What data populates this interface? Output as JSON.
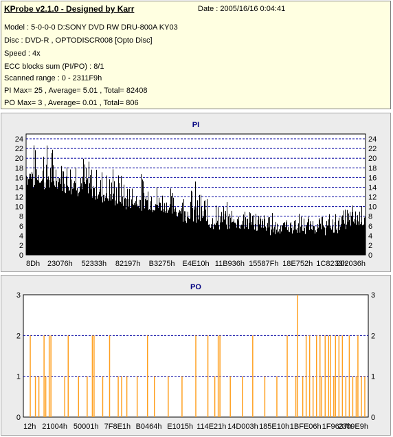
{
  "info": {
    "title": "KProbe v2.1.0 - Designed by Karr",
    "date": "Date : 2005/16/16 0:04:41",
    "lines": [
      "Model : 5-0-0-0 D:SONY    DVD RW DRU-800A  KY03",
      "Disc : DVD-R , OPTODISCR008 [Opto Disc]",
      "Speed : 4x",
      "ECC blocks sum (PI/PO) : 8/1",
      "Scanned range : 0 - 2311F9h",
      "PI Max= 25 , Average= 5.01 , Total= 82408",
      "PO Max= 3 , Average= 0.01 , Total= 806"
    ]
  },
  "colors": {
    "pi_bar": "#000000",
    "po_bar": "#ffa020",
    "chart_title": "#000080",
    "grid": "#0000a0",
    "panel_bg": "#ececec"
  },
  "chart_data": [
    {
      "type": "bar",
      "title": "PI",
      "ylim": [
        0,
        25
      ],
      "y_ticks": [
        0,
        2,
        4,
        6,
        8,
        10,
        12,
        14,
        16,
        18,
        20,
        22,
        24
      ],
      "x_tick_labels": [
        "8Dh",
        "23076h",
        "52333h",
        "82197h",
        "B3275h",
        "E4E10h",
        "11B936h",
        "15587Fh",
        "18E752h",
        "1C8233h",
        "202036h"
      ],
      "grid": true,
      "envelope": {
        "x": [
          0,
          0.05,
          0.1,
          0.15,
          0.2,
          0.25,
          0.3,
          0.35,
          0.4,
          0.45,
          0.5,
          0.55,
          0.6,
          0.65,
          0.7,
          0.75,
          0.8,
          0.85,
          0.9,
          0.95,
          1.0
        ],
        "average": [
          15,
          14,
          14,
          13,
          12,
          11,
          10,
          10,
          9,
          8,
          7,
          6,
          6,
          6,
          5,
          5,
          5,
          5,
          5,
          6,
          7
        ],
        "peak": [
          21,
          25,
          20,
          23,
          18,
          19,
          15,
          17,
          14,
          13,
          15,
          11,
          10,
          10,
          9,
          8,
          8,
          8,
          8,
          10,
          11
        ]
      }
    },
    {
      "type": "bar",
      "title": "PO",
      "ylim": [
        0,
        3
      ],
      "y_ticks": [
        0,
        1,
        2,
        3
      ],
      "x_tick_labels": [
        "12h",
        "21004h",
        "50001h",
        "7F8E1h",
        "B0464h",
        "E1015h",
        "114E21h",
        "14D003h",
        "185E10h",
        "1BFE06h",
        "1F9637h",
        "2309E9h"
      ],
      "grid": true,
      "spikes": [
        {
          "x": 0.02,
          "y": 2
        },
        {
          "x": 0.035,
          "y": 1
        },
        {
          "x": 0.045,
          "y": 1
        },
        {
          "x": 0.06,
          "y": 2
        },
        {
          "x": 0.065,
          "y": 1
        },
        {
          "x": 0.075,
          "y": 2
        },
        {
          "x": 0.08,
          "y": 2
        },
        {
          "x": 0.12,
          "y": 1
        },
        {
          "x": 0.13,
          "y": 2
        },
        {
          "x": 0.16,
          "y": 1
        },
        {
          "x": 0.185,
          "y": 1
        },
        {
          "x": 0.2,
          "y": 2
        },
        {
          "x": 0.205,
          "y": 2
        },
        {
          "x": 0.23,
          "y": 1
        },
        {
          "x": 0.25,
          "y": 2
        },
        {
          "x": 0.275,
          "y": 1
        },
        {
          "x": 0.285,
          "y": 1
        },
        {
          "x": 0.3,
          "y": 1
        },
        {
          "x": 0.33,
          "y": 1
        },
        {
          "x": 0.36,
          "y": 2
        },
        {
          "x": 0.38,
          "y": 1
        },
        {
          "x": 0.42,
          "y": 1
        },
        {
          "x": 0.46,
          "y": 1
        },
        {
          "x": 0.5,
          "y": 2
        },
        {
          "x": 0.535,
          "y": 2
        },
        {
          "x": 0.555,
          "y": 1
        },
        {
          "x": 0.565,
          "y": 2
        },
        {
          "x": 0.57,
          "y": 2
        },
        {
          "x": 0.6,
          "y": 1
        },
        {
          "x": 0.635,
          "y": 1
        },
        {
          "x": 0.665,
          "y": 2
        },
        {
          "x": 0.7,
          "y": 1
        },
        {
          "x": 0.735,
          "y": 1
        },
        {
          "x": 0.765,
          "y": 2
        },
        {
          "x": 0.79,
          "y": 1
        },
        {
          "x": 0.795,
          "y": 3
        },
        {
          "x": 0.81,
          "y": 1
        },
        {
          "x": 0.82,
          "y": 2
        },
        {
          "x": 0.83,
          "y": 2
        },
        {
          "x": 0.84,
          "y": 1
        },
        {
          "x": 0.85,
          "y": 2
        },
        {
          "x": 0.86,
          "y": 2
        },
        {
          "x": 0.865,
          "y": 1
        },
        {
          "x": 0.875,
          "y": 2
        },
        {
          "x": 0.885,
          "y": 2
        },
        {
          "x": 0.89,
          "y": 2
        },
        {
          "x": 0.9,
          "y": 1
        },
        {
          "x": 0.905,
          "y": 2
        },
        {
          "x": 0.915,
          "y": 2
        },
        {
          "x": 0.925,
          "y": 2
        },
        {
          "x": 0.935,
          "y": 1
        },
        {
          "x": 0.945,
          "y": 2
        },
        {
          "x": 0.955,
          "y": 1
        },
        {
          "x": 0.965,
          "y": 1
        },
        {
          "x": 0.97,
          "y": 2
        },
        {
          "x": 0.98,
          "y": 1
        },
        {
          "x": 0.99,
          "y": 1
        }
      ]
    }
  ]
}
